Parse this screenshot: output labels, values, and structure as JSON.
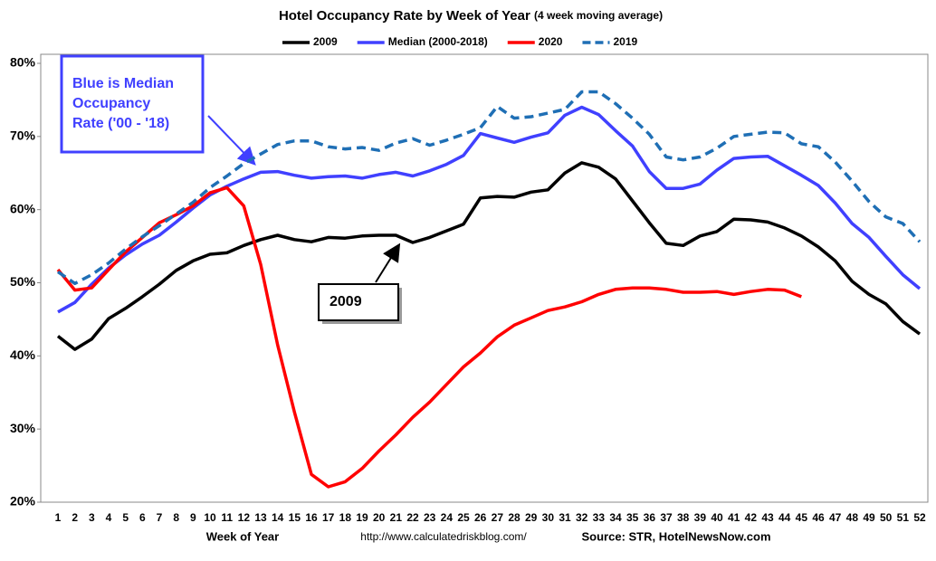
{
  "chart_data": {
    "type": "line",
    "title": "Hotel Occupancy Rate by  Week of Year",
    "subtitle": "(4 week moving average)",
    "x_label": "Week of Year",
    "url": "http://www.calculatedriskblog.com/",
    "source": "Source: STR, HotelNewsNow.com",
    "categories": [
      "1",
      "2",
      "3",
      "4",
      "5",
      "6",
      "7",
      "8",
      "9",
      "10",
      "11",
      "12",
      "13",
      "14",
      "15",
      "16",
      "17",
      "18",
      "19",
      "20",
      "21",
      "22",
      "23",
      "24",
      "25",
      "26",
      "27",
      "28",
      "29",
      "30",
      "31",
      "32",
      "33",
      "34",
      "35",
      "36",
      "37",
      "38",
      "39",
      "40",
      "41",
      "42",
      "43",
      "44",
      "45",
      "46",
      "47",
      "48",
      "49",
      "50",
      "51",
      "52"
    ],
    "ylim": [
      20,
      80
    ],
    "yticks": [
      {
        "value": 20,
        "label": "20%"
      },
      {
        "value": 30,
        "label": "30%"
      },
      {
        "value": 40,
        "label": "40%"
      },
      {
        "value": 50,
        "label": "50%"
      },
      {
        "value": 60,
        "label": "60%"
      },
      {
        "value": 70,
        "label": "70%"
      },
      {
        "value": 80,
        "label": "80%"
      }
    ],
    "grid": false,
    "legend": "top",
    "series": [
      {
        "name": "2009",
        "color": "#000000",
        "values": [
          42.7,
          40.9,
          42.3,
          45.1,
          46.5,
          48.1,
          49.8,
          51.7,
          53.0,
          53.9,
          54.1,
          55.1,
          55.9,
          56.5,
          55.9,
          55.6,
          56.2,
          56.1,
          56.4,
          56.5,
          56.5,
          55.5,
          56.2,
          57.1,
          58.0,
          61.6,
          61.8,
          61.7,
          62.4,
          62.7,
          65.0,
          66.4,
          65.8,
          64.2,
          61.2,
          58.2,
          55.4,
          55.1,
          56.4,
          57.0,
          58.7,
          58.6,
          58.3,
          57.5,
          56.4,
          54.9,
          53.0,
          50.2,
          48.4,
          47.1,
          44.7,
          43.0
        ]
      },
      {
        "name": "Median (2000-2018)",
        "color": "#4040ff",
        "values": [
          46.0,
          47.3,
          49.8,
          52.0,
          53.8,
          55.3,
          56.5,
          58.3,
          60.2,
          62.0,
          63.2,
          64.2,
          65.1,
          65.2,
          64.7,
          64.3,
          64.5,
          64.6,
          64.3,
          64.8,
          65.1,
          64.6,
          65.3,
          66.2,
          67.4,
          70.4,
          69.8,
          69.2,
          69.9,
          70.5,
          72.9,
          74.0,
          73.0,
          70.8,
          68.7,
          65.2,
          62.9,
          62.9,
          63.5,
          65.4,
          67.0,
          67.2,
          67.3,
          66.0,
          64.7,
          63.3,
          60.9,
          58.1,
          56.2,
          53.6,
          51.1,
          49.2
        ]
      },
      {
        "name": "2020",
        "color": "#ff0000",
        "values": [
          51.8,
          49.0,
          49.3,
          51.8,
          54.2,
          56.2,
          58.2,
          59.3,
          60.5,
          62.3,
          63.0,
          60.5,
          52.5,
          41.5,
          32.3,
          23.8,
          22.1,
          22.8,
          24.6,
          27.0,
          29.2,
          31.6,
          33.7,
          36.1,
          38.5,
          40.4,
          42.6,
          44.2,
          45.2,
          46.2,
          46.7,
          47.4,
          48.4,
          49.1,
          49.3,
          49.3,
          49.1,
          48.7,
          48.7,
          48.8,
          48.4,
          48.8,
          49.1,
          49.0,
          48.1,
          null,
          null,
          null,
          null,
          null,
          null,
          null
        ]
      },
      {
        "name": "2019",
        "color": "#1f6fb5",
        "line_style": "dashed",
        "values": [
          51.5,
          49.9,
          51.1,
          52.7,
          54.6,
          56.3,
          57.8,
          59.4,
          61.0,
          63.0,
          64.6,
          66.3,
          67.6,
          68.9,
          69.4,
          69.4,
          68.6,
          68.3,
          68.5,
          68.1,
          69.1,
          69.7,
          68.8,
          69.5,
          70.3,
          71.2,
          74.1,
          72.5,
          72.7,
          73.2,
          73.7,
          76.1,
          76.1,
          74.5,
          72.5,
          70.3,
          67.2,
          66.8,
          67.2,
          68.4,
          70.0,
          70.3,
          70.6,
          70.5,
          69.0,
          68.6,
          66.5,
          63.9,
          61.1,
          59.0,
          58.1,
          55.6
        ]
      }
    ],
    "annotations": [
      {
        "lines": [
          "Blue is Median",
          "Occupancy",
          "Rate ('00 - '18)"
        ],
        "color": "#4040ff"
      },
      {
        "lines": [
          "2009"
        ],
        "color": "#000000"
      }
    ]
  }
}
